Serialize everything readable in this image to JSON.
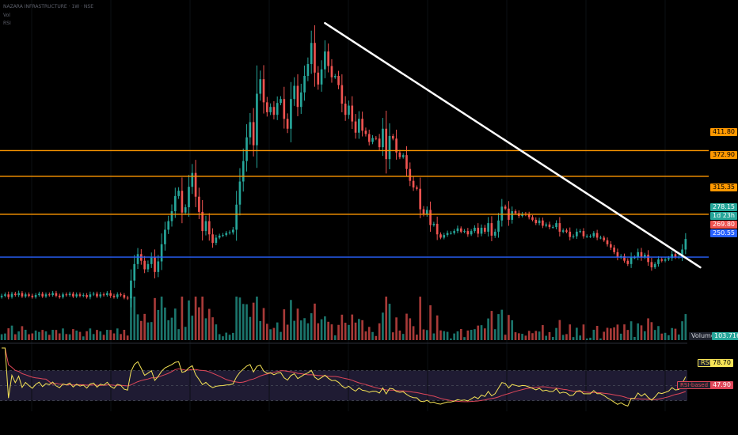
{
  "header": {
    "symbol_line": "NAZARA INFRASTRUCTURE · 1W · NSE",
    "line2": "Vol",
    "line3": "RSI"
  },
  "colors": {
    "up": "#26a69a",
    "down": "#ef5350",
    "resistance": "#ff9800",
    "support": "#2962ff",
    "trendline": "#ffffff",
    "rsi": "#f5e356",
    "rsi_ma": "#e0475a",
    "rsi_band": "#1f1b33",
    "background": "#000000"
  },
  "levels": {
    "r1": "411.80",
    "r2": "372.90",
    "r3": "315.35",
    "support": "250.55"
  },
  "price_tags": {
    "last": "278.15",
    "countdown": "1d 23h",
    "prev": "269.80"
  },
  "volume": {
    "label": "Volume",
    "value": "103.716K"
  },
  "rsi_tag": {
    "label": "RSI",
    "value": "78.70",
    "ma_label": "RSI-based MA",
    "ma_value": "47.90"
  },
  "chart_data": {
    "type": "candlestick",
    "price_range": [
      120,
      640
    ],
    "horizontal_levels": [
      411.8,
      372.9,
      315.35,
      250.55
    ],
    "trendline": {
      "start_index": 95,
      "start_price": 605,
      "end_index": 203,
      "end_price": 235
    },
    "closes": [
      192,
      194,
      190,
      195,
      193,
      196,
      191,
      194,
      192,
      190,
      193,
      195,
      191,
      194,
      193,
      196,
      192,
      190,
      194,
      193,
      195,
      191,
      194,
      192,
      193,
      190,
      194,
      195,
      191,
      194,
      193,
      196,
      192,
      190,
      194,
      193,
      189,
      188,
      215,
      240,
      255,
      245,
      232,
      240,
      250,
      228,
      244,
      270,
      292,
      305,
      320,
      343,
      351,
      318,
      326,
      357,
      378,
      342,
      319,
      290,
      305,
      285,
      272,
      280,
      283,
      284,
      287,
      288,
      292,
      330,
      365,
      396,
      432,
      455,
      420,
      498,
      520,
      485,
      470,
      478,
      466,
      484,
      490,
      460,
      445,
      490,
      510,
      478,
      500,
      525,
      543,
      575,
      530,
      512,
      535,
      562,
      540,
      523,
      525,
      511,
      483,
      466,
      480,
      456,
      439,
      460,
      442,
      437,
      425,
      431,
      430,
      417,
      445,
      399,
      434,
      430,
      409,
      402,
      405,
      384,
      366,
      356,
      354,
      323,
      316,
      322,
      299,
      301,
      285,
      280,
      284,
      287,
      287,
      290,
      294,
      289,
      290,
      285,
      290,
      295,
      286,
      295,
      289,
      302,
      283,
      289,
      306,
      327,
      324,
      307,
      320,
      317,
      313,
      316,
      315,
      311,
      307,
      302,
      306,
      298,
      300,
      296,
      296,
      302,
      289,
      291,
      289,
      281,
      282,
      289,
      290,
      282,
      282,
      282,
      287,
      280,
      280,
      276,
      270,
      265,
      258,
      250,
      252,
      245,
      240,
      250,
      250,
      258,
      250,
      254,
      243,
      235,
      240,
      247,
      245,
      247,
      249,
      255,
      250,
      251,
      262,
      278
    ]
  }
}
